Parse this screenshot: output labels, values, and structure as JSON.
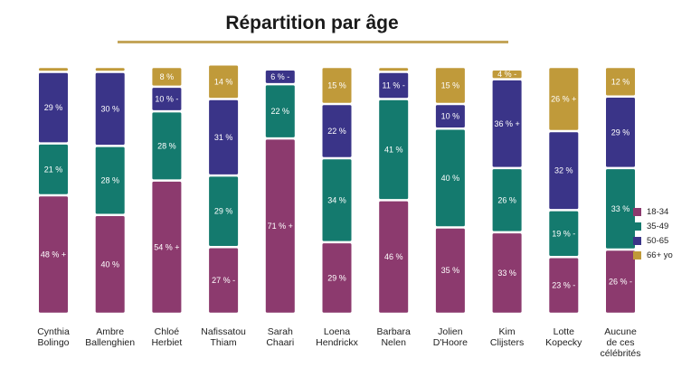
{
  "title": "Répartition par âge",
  "chart_data": {
    "type": "bar",
    "stacked": true,
    "percent_100": true,
    "title": "Répartition par âge",
    "categories": [
      "Cynthia Bolingo",
      "Ambre Ballenghien",
      "Chloé Herbiet",
      "Nafissatou Thiam",
      "Sarah Chaari",
      "Loena Hendrickx",
      "Barbara Nelen",
      "Jolien D'Hoore",
      "Kim Clijsters",
      "Lotte Kopecky",
      "Aucune de ces célébrités"
    ],
    "category_lines": [
      [
        "Cynthia",
        "Bolingo"
      ],
      [
        "Ambre",
        "Ballenghien"
      ],
      [
        "Chloé",
        "Herbiet"
      ],
      [
        "Nafissatou",
        "Thiam"
      ],
      [
        "Sarah",
        "Chaari"
      ],
      [
        "Loena",
        "Hendrickx"
      ],
      [
        "Barbara",
        "Nelen"
      ],
      [
        "Jolien",
        "D'Hoore"
      ],
      [
        "Kim",
        "Clijsters"
      ],
      [
        "Lotte",
        "Kopecky"
      ],
      [
        "Aucune",
        "de ces",
        "célébrités"
      ]
    ],
    "series": [
      {
        "name": "18-34",
        "color": "#8c3a6e",
        "values": [
          48,
          40,
          54,
          27,
          71,
          29,
          46,
          35,
          33,
          23,
          26
        ],
        "labels": [
          "48 % +",
          "40 %",
          "54 % +",
          "27 % -",
          "71 % +",
          "29 %",
          "46 %",
          "35 %",
          "33 %",
          "23 % -",
          "26 % -"
        ]
      },
      {
        "name": "35-49",
        "color": "#147a6e",
        "values": [
          21,
          28,
          28,
          29,
          22,
          34,
          41,
          40,
          26,
          19,
          33
        ],
        "labels": [
          "21 %",
          "28 %",
          "28 %",
          "29 %",
          "22 %",
          "34 %",
          "41 %",
          "40 %",
          "26 %",
          "19 % -",
          "33 %"
        ]
      },
      {
        "name": "50-65",
        "color": "#3a3488",
        "values": [
          29,
          30,
          10,
          31,
          6,
          22,
          11,
          10,
          36,
          32,
          29
        ],
        "labels": [
          "29 %",
          "30 %",
          "10 % -",
          "31 %",
          "6 % -",
          "22 %",
          "11 % -",
          "10 %",
          "36 % +",
          "32 %",
          "29 %"
        ]
      },
      {
        "name": "66+ yo",
        "color": "#c09a3a",
        "values": [
          2,
          2,
          8,
          14,
          0,
          15,
          2,
          15,
          4,
          26,
          12
        ],
        "labels": [
          "",
          "",
          "8 %",
          "14 %",
          "",
          "15 %",
          "",
          "15 %",
          "4 % -",
          "26 % +",
          "12 %"
        ]
      }
    ],
    "ylim": [
      0,
      100
    ],
    "legend": "right"
  }
}
